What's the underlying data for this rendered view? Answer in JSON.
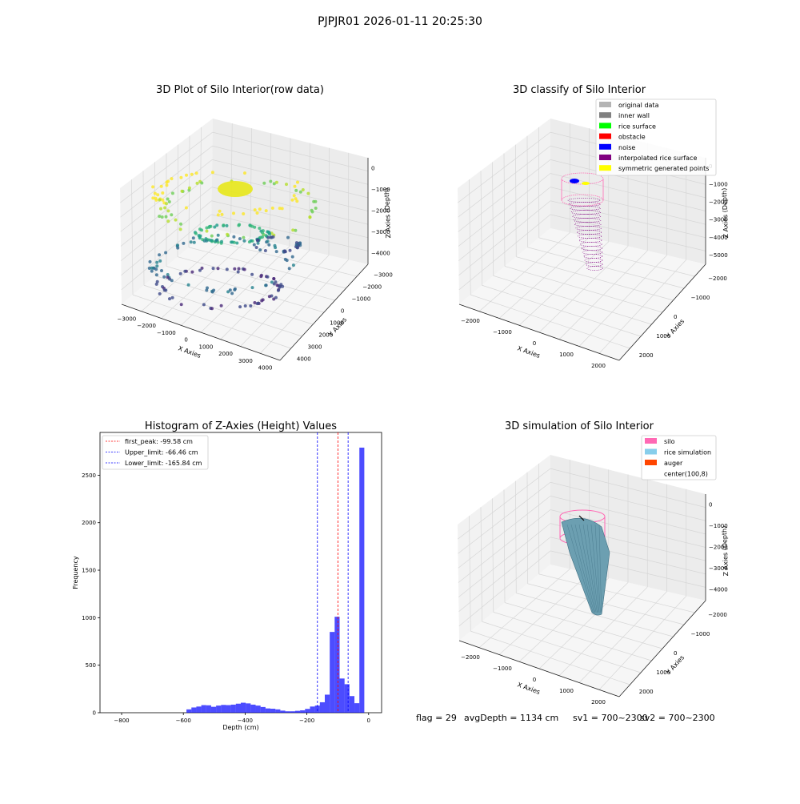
{
  "figure": {
    "suptitle": "PJPJR01 2026-01-11 20:25:30",
    "status_line": {
      "flag": "flag = 29",
      "avg_depth": "avgDepth = 1134 cm",
      "sv1": "sv1 = 700~2300",
      "sv2": "sv2 = 700~2300"
    }
  },
  "colors": {
    "hist_bar": "#0000ff",
    "peak_line": "#ff0000",
    "limit_line": "#0000ff",
    "pane_back": "#ececec",
    "pane_side": "#f2f2f2",
    "pane_floor": "#f6f6f6",
    "grid": "#d6d6d6"
  },
  "chart_data": [
    {
      "id": "raw",
      "type": "scatter3d",
      "title": "3D Plot of Silo Interior(row data)",
      "xlabel": "X Axies",
      "ylabel": "Y Axies",
      "zlabel": "Z Axies (Depth)",
      "x_ticks": [
        "−3000",
        "−2000",
        "−1000",
        "0",
        "1000",
        "2000",
        "3000",
        "4000"
      ],
      "y_ticks": [
        "−3000",
        "−2000",
        "−1000",
        "0",
        "1000",
        "2000",
        "3000",
        "4000"
      ],
      "z_ticks": [
        "0",
        "−1000",
        "−2000",
        "−3000",
        "−4000"
      ],
      "colormap": "viridis"
    },
    {
      "id": "classify",
      "type": "scatter3d",
      "title": "3D classify of Silo Interior",
      "xlabel": "X Axies",
      "ylabel": "Y Axies",
      "zlabel": "Z Axies (Depth)",
      "x_ticks": [
        "−2000",
        "−1000",
        "0",
        "1000",
        "2000"
      ],
      "y_ticks": [
        "−2000",
        "−1000",
        "0",
        "1000",
        "2000"
      ],
      "z_ticks": [
        "0",
        "−1000",
        "−2000",
        "−3000",
        "−4000",
        "−5000"
      ],
      "legend": [
        {
          "label": "original data",
          "color": "#b4b4b4"
        },
        {
          "label": "inner wall",
          "color": "#808080"
        },
        {
          "label": "rice surface",
          "color": "#00ff00"
        },
        {
          "label": "obstacle",
          "color": "#ff0000"
        },
        {
          "label": "noise",
          "color": "#0000ff"
        },
        {
          "label": "interpolated rice surface",
          "color": "#800080"
        },
        {
          "label": "symmetric generated points",
          "color": "#ffff00"
        }
      ]
    },
    {
      "id": "hist",
      "type": "bar",
      "title": "Histogram of Z-Axies (Height) Values",
      "xlabel": "Depth (cm)",
      "ylabel": "Frequency",
      "xlim": [
        -870,
        42
      ],
      "ylim": [
        0,
        2950
      ],
      "x_ticks": [
        -800,
        -600,
        -400,
        -200,
        0
      ],
      "x_tick_labels": [
        "−800",
        "−600",
        "−400",
        "−200",
        "0"
      ],
      "y_ticks": [
        0,
        500,
        1000,
        1500,
        2000,
        2500
      ],
      "y_tick_labels": [
        "0",
        "500",
        "1000",
        "1500",
        "2000",
        "2500"
      ],
      "bin_edges": [
        -590,
        -574,
        -558,
        -542,
        -526,
        -510,
        -494,
        -478,
        -462,
        -446,
        -430,
        -414,
        -398,
        -382,
        -366,
        -350,
        -334,
        -318,
        -302,
        -286,
        -270,
        -254,
        -238,
        -222,
        -206,
        -190,
        -174,
        -158,
        -142,
        -126,
        -110,
        -94,
        -78,
        -62,
        -46,
        -30,
        -14,
        0
      ],
      "counts": [
        35,
        55,
        65,
        80,
        78,
        62,
        75,
        82,
        80,
        85,
        95,
        105,
        98,
        85,
        75,
        60,
        45,
        42,
        35,
        22,
        15,
        15,
        20,
        25,
        40,
        65,
        75,
        110,
        190,
        850,
        1010,
        360,
        300,
        175,
        100,
        2790,
        0
      ],
      "lines": [
        {
          "label": "first_peak: -99.58 cm",
          "value": -99.58,
          "color": "#ff0000"
        },
        {
          "label": "Upper_limit: -66.46 cm",
          "value": -66.46,
          "color": "#0000ff"
        },
        {
          "label": "Lower_limit: -165.84 cm",
          "value": -165.84,
          "color": "#0000ff"
        }
      ]
    },
    {
      "id": "sim",
      "type": "surface3d",
      "title": "3D simulation of Silo Interior",
      "xlabel": "X Axies",
      "ylabel": "Y Axies",
      "zlabel": "Z Axies (Depth)",
      "x_ticks": [
        "−2000",
        "−1000",
        "0",
        "1000",
        "2000"
      ],
      "y_ticks": [
        "−2000",
        "−1000",
        "0",
        "1000",
        "2000"
      ],
      "z_ticks": [
        "0",
        "−1000",
        "−2000",
        "−3000",
        "−4000"
      ],
      "legend": [
        {
          "label": "silo",
          "color": "#ff69b4"
        },
        {
          "label": "rice simulation",
          "color": "#87ceeb"
        },
        {
          "label": "auger",
          "color": "#ff4500"
        },
        {
          "label": "center(100,8)",
          "color": "#ffffff"
        }
      ]
    }
  ]
}
